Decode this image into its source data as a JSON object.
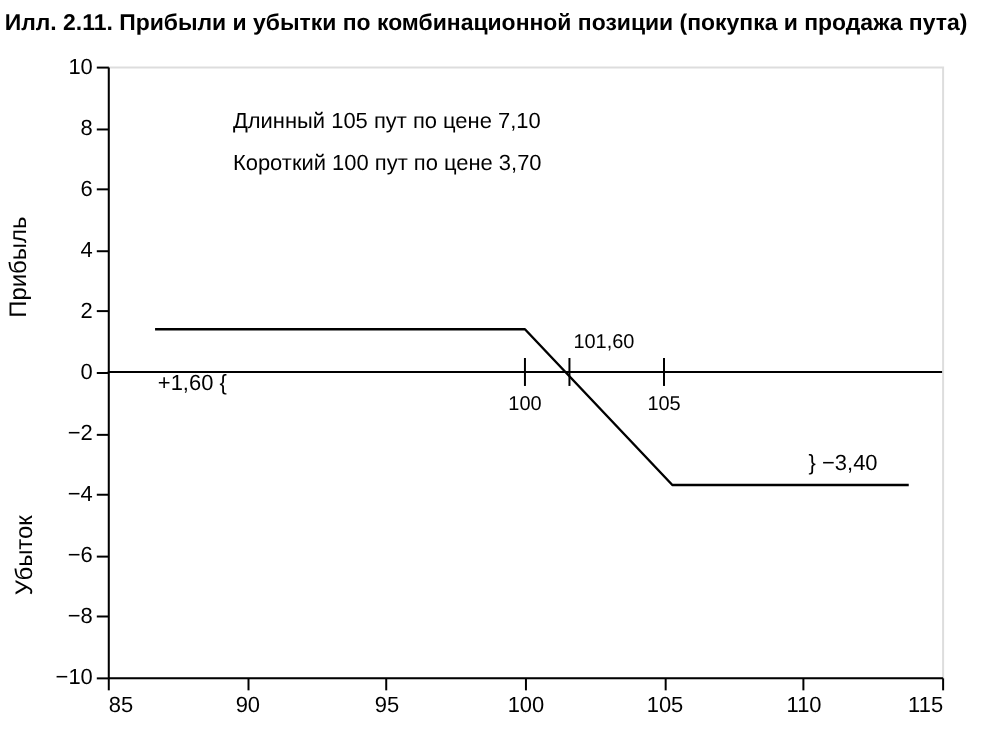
{
  "chart_data": {
    "type": "line",
    "title": "Илл. 2.11. Прибыли и убытки по комбинационной позиции (покупка и продажа пута)",
    "ylabel": "Прибыль",
    "series": [
      {
        "color": "#000000",
        "x": [
          86.7,
          100,
          105.3,
          113.8
        ],
        "values": [
          1.4,
          1.4,
          -3.7,
          -3.7
        ]
      }
    ],
    "xlim": [
      85,
      115
    ],
    "xticks": [
      85,
      90,
      95,
      100,
      105,
      110,
      115
    ],
    "ylim": [
      -10,
      10
    ],
    "yticks": [
      -10,
      -8,
      -6,
      -4,
      -2,
      0,
      2,
      4,
      6,
      8,
      10
    ],
    "ref_lines": [
      {
        "axis": "y",
        "value": 0,
        "color": "#000000"
      }
    ],
    "annotations": [
      "Длинный 105 пут по цене 7,10",
      "Короткий 100 пут по цене 3,70",
      "+1,60 {",
      "} −3,40",
      "Убыток",
      {
        "text": "100",
        "x": 100,
        "y": 0
      },
      {
        "text": "101,60",
        "x": 101.6,
        "y": 0
      },
      {
        "text": "105",
        "x": 105,
        "y": 0
      }
    ],
    "grid": false,
    "marker": "none",
    "line_style": "solid"
  }
}
